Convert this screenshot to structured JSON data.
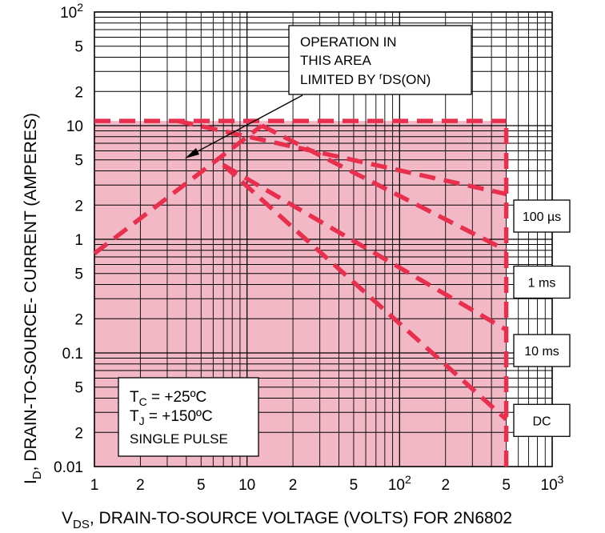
{
  "chart_data": {
    "type": "line",
    "log_x": true,
    "log_y": true,
    "xlim": [
      1,
      1000
    ],
    "ylim": [
      0.01,
      100
    ],
    "grid": true,
    "ylabel_main": "I",
    "ylabel_sub": "D",
    "ylabel_rest": ", DRAIN-TO-SOURCE- CURRENT (AMPERES)",
    "xlabel_main": "V",
    "xlabel_sub": "DS",
    "xlabel_rest": ", DRAIN-TO-SOURCE VOLTAGE (VOLTS) FOR 2N6802",
    "x_ticks": [
      {
        "value": 1,
        "base": "1",
        "sup": ""
      },
      {
        "value": 2,
        "base": "2",
        "sup": ""
      },
      {
        "value": 5,
        "base": "5",
        "sup": ""
      },
      {
        "value": 10,
        "base": "10",
        "sup": ""
      },
      {
        "value": 20,
        "base": "2",
        "sup": ""
      },
      {
        "value": 50,
        "base": "5",
        "sup": ""
      },
      {
        "value": 100,
        "base": "10",
        "sup": "2"
      },
      {
        "value": 200,
        "base": "2",
        "sup": ""
      },
      {
        "value": 500,
        "base": "5",
        "sup": ""
      },
      {
        "value": 1000,
        "base": "10",
        "sup": "3"
      }
    ],
    "y_ticks": [
      {
        "value": 100,
        "base": "10",
        "sup": "2"
      },
      {
        "value": 50,
        "base": "5",
        "sup": ""
      },
      {
        "value": 20,
        "base": "2",
        "sup": ""
      },
      {
        "value": 10,
        "base": "10",
        "sup": ""
      },
      {
        "value": 5,
        "base": "5",
        "sup": ""
      },
      {
        "value": 2,
        "base": "2",
        "sup": ""
      },
      {
        "value": 1,
        "base": "1",
        "sup": ""
      },
      {
        "value": 0.5,
        "base": "5",
        "sup": ""
      },
      {
        "value": 0.2,
        "base": "2",
        "sup": ""
      },
      {
        "value": 0.1,
        "base": "0.1",
        "sup": ""
      },
      {
        "value": 0.05,
        "base": "5",
        "sup": ""
      },
      {
        "value": 0.02,
        "base": "2",
        "sup": ""
      },
      {
        "value": 0.01,
        "base": "0.01",
        "sup": ""
      }
    ],
    "safe_area": {
      "x_max": 500,
      "y_max": 11,
      "color": "#f2b8c6"
    },
    "boundary_lines": [
      {
        "name": "current-limit",
        "x": [
          1,
          500
        ],
        "y": [
          11,
          11
        ]
      },
      {
        "name": "voltage-limit",
        "x": [
          500,
          500
        ],
        "y": [
          0.01,
          11
        ]
      }
    ],
    "series": [
      {
        "x": [
          1,
          12.5
        ],
        "y": [
          0.75,
          10
        ]
      },
      {
        "x": [
          3.5,
          500
        ],
        "y": [
          11,
          2.5
        ]
      },
      {
        "x": [
          12.5,
          500
        ],
        "y": [
          10,
          0.8
        ]
      },
      {
        "x": [
          7,
          500
        ],
        "y": [
          4.5,
          0.16
        ]
      },
      {
        "x": [
          7,
          500
        ],
        "y": [
          4.5,
          0.026
        ]
      }
    ],
    "series_labels": [
      {
        "text": "100 µs",
        "y": 1.6
      },
      {
        "text": "1 ms",
        "y": 0.42
      },
      {
        "text": "10 ms",
        "y": 0.105
      },
      {
        "text": "DC",
        "y": 0.0255
      }
    ],
    "line_color": "#e8304e",
    "annotation": {
      "line1": "OPERATION IN",
      "line2": "THIS AREA",
      "line3_main": "LIMITED BY ",
      "line3_pre": "r",
      "line3_sub": "DS(ON)"
    },
    "conditions": {
      "tc_main": "T",
      "tc_sub": "C",
      "tc_rest": " = +25ºC",
      "tj_main": "T",
      "tj_sub": "J",
      "tj_rest": " = +150ºC",
      "pulse": "SINGLE PULSE"
    }
  }
}
